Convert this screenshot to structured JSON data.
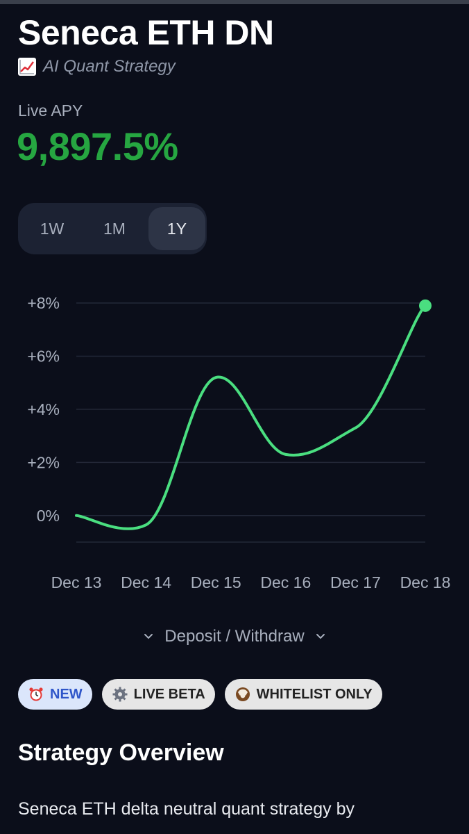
{
  "header": {
    "title": "Seneca ETH DN",
    "subtitle": "AI Quant Strategy",
    "subtitle_icon": "chart-increasing-icon"
  },
  "apy": {
    "label": "Live APY",
    "value": "9,897.5%",
    "color": "#26a641"
  },
  "period_toggle": {
    "options": [
      "1W",
      "1M",
      "1Y"
    ],
    "selected": "1Y"
  },
  "chart_data": {
    "type": "line",
    "x": [
      "Dec 13",
      "Dec 14",
      "Dec 15",
      "Dec 16",
      "Dec 17",
      "Dec 18"
    ],
    "series": [
      {
        "values": [
          0.0,
          -0.35,
          5.2,
          2.3,
          3.3,
          7.9
        ]
      }
    ],
    "yticks": [
      "+8%",
      "+6%",
      "+4%",
      "+2%",
      "0%"
    ],
    "ylim": [
      -1,
      8
    ],
    "grid": true,
    "line_color": "#4ade80"
  },
  "actions": {
    "deposit_withdraw": "Deposit / Withdraw"
  },
  "badges": [
    {
      "icon": "alarm-clock-icon",
      "label": "NEW"
    },
    {
      "icon": "gear-icon",
      "label": "LIVE BETA"
    },
    {
      "icon": "coconut-icon",
      "label": "WHITELIST ONLY"
    }
  ],
  "overview": {
    "title": "Strategy Overview",
    "body": "Seneca ETH delta neutral quant strategy by"
  }
}
